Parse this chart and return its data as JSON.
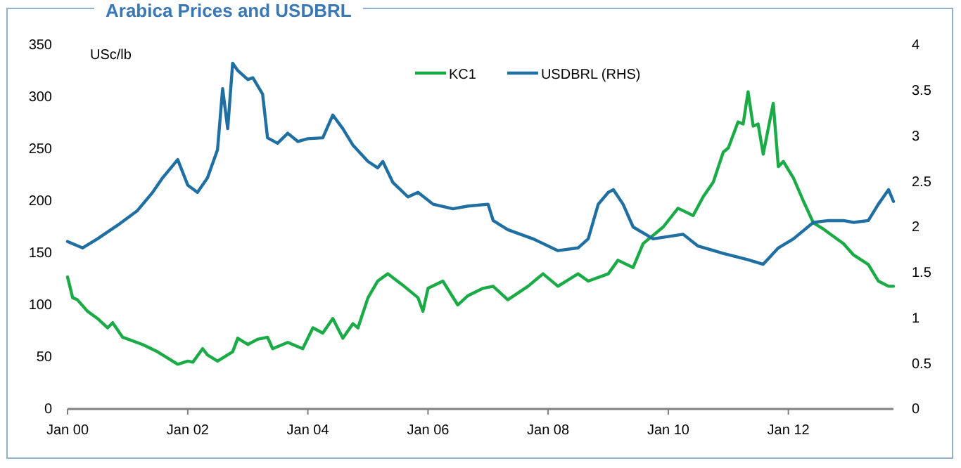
{
  "chart_data": {
    "type": "line",
    "title": "Arabica Prices and USDBRL",
    "ylabel": "USc/lb",
    "xlim": [
      "2000-01",
      "2013-10"
    ],
    "xticks": [
      {
        "value": "2000-01",
        "label": "Jan 00"
      },
      {
        "value": "2002-01",
        "label": "Jan 02"
      },
      {
        "value": "2004-01",
        "label": "Jan 04"
      },
      {
        "value": "2006-01",
        "label": "Jan 06"
      },
      {
        "value": "2008-01",
        "label": "Jan 08"
      },
      {
        "value": "2010-01",
        "label": "Jan 10"
      },
      {
        "value": "2012-01",
        "label": "Jan 12"
      }
    ],
    "ylim": [
      0,
      350
    ],
    "yticks": [
      0,
      50,
      100,
      150,
      200,
      250,
      300,
      350
    ],
    "y2lim": [
      0,
      4
    ],
    "y2ticks": [
      0,
      0.5,
      1,
      1.5,
      2,
      2.5,
      3,
      3.5,
      4
    ],
    "grid": false,
    "legend": "top",
    "marker": "none",
    "line_style": "solid",
    "series": [
      {
        "name": "KC1",
        "color": "#1aab47",
        "x": [
          "2000-01",
          "2000-02",
          "2000-03",
          "2000-05",
          "2000-07",
          "2000-09",
          "2000-10",
          "2000-12",
          "2001-04",
          "2001-07",
          "2001-11",
          "2002-01",
          "2002-02",
          "2002-04",
          "2002-05",
          "2002-07",
          "2002-10",
          "2002-11",
          "2003-01",
          "2003-03",
          "2003-05",
          "2003-06",
          "2003-09",
          "2003-12",
          "2004-02",
          "2004-04",
          "2004-06",
          "2004-08",
          "2004-10",
          "2004-11",
          "2005-01",
          "2005-03",
          "2005-05",
          "2005-08",
          "2005-11",
          "2005-12",
          "2006-01",
          "2006-04",
          "2006-07",
          "2006-09",
          "2006-12",
          "2007-02",
          "2007-05",
          "2007-09",
          "2007-12",
          "2008-03",
          "2008-07",
          "2008-09",
          "2009-01",
          "2009-03",
          "2009-06",
          "2009-08",
          "2009-12",
          "2010-03",
          "2010-06",
          "2010-08",
          "2010-10",
          "2010-12",
          "2011-01",
          "2011-03",
          "2011-04",
          "2011-05",
          "2011-06",
          "2011-07",
          "2011-08",
          "2011-10",
          "2011-11",
          "2011-12",
          "2012-02",
          "2012-04",
          "2012-06",
          "2012-08",
          "2012-12",
          "2013-02",
          "2013-05",
          "2013-07",
          "2013-09",
          "2013-10"
        ],
        "values": [
          127,
          107,
          105,
          94,
          87,
          78,
          83,
          69,
          62,
          55,
          43,
          46,
          45,
          58,
          52,
          46,
          55,
          68,
          62,
          67,
          69,
          58,
          64,
          58,
          78,
          73,
          87,
          68,
          82,
          78,
          107,
          123,
          130,
          119,
          107,
          94,
          116,
          123,
          100,
          109,
          116,
          118,
          105,
          118,
          130,
          118,
          130,
          123,
          130,
          143,
          136,
          159,
          175,
          193,
          186,
          204,
          218,
          247,
          251,
          276,
          274,
          305,
          272,
          274,
          245,
          294,
          233,
          238,
          222,
          200,
          179,
          173,
          159,
          148,
          139,
          123,
          118,
          118
        ]
      },
      {
        "name": "USDBRL (RHS)",
        "color": "#1f6fa3",
        "axis": "y2",
        "x": [
          "2000-01",
          "2000-04",
          "2000-07",
          "2000-11",
          "2001-03",
          "2001-06",
          "2001-08",
          "2001-11",
          "2002-01",
          "2002-03",
          "2002-05",
          "2002-07",
          "2002-08",
          "2002-09",
          "2002-10",
          "2002-11",
          "2003-01",
          "2003-02",
          "2003-04",
          "2003-05",
          "2003-07",
          "2003-09",
          "2003-11",
          "2004-01",
          "2004-04",
          "2004-06",
          "2004-08",
          "2004-10",
          "2005-01",
          "2005-03",
          "2005-04",
          "2005-06",
          "2005-09",
          "2005-11",
          "2006-02",
          "2006-06",
          "2006-09",
          "2007-01",
          "2007-02",
          "2007-05",
          "2007-10",
          "2008-03",
          "2008-07",
          "2008-09",
          "2008-11",
          "2009-01",
          "2009-02",
          "2009-04",
          "2009-06",
          "2009-10",
          "2010-04",
          "2010-07",
          "2010-12",
          "2011-05",
          "2011-08",
          "2011-11",
          "2012-02",
          "2012-06",
          "2012-09",
          "2012-12",
          "2013-02",
          "2013-05",
          "2013-07",
          "2013-09",
          "2013-10"
        ],
        "values": [
          1.84,
          1.77,
          1.87,
          2.02,
          2.18,
          2.38,
          2.54,
          2.74,
          2.46,
          2.38,
          2.54,
          2.85,
          3.52,
          3.08,
          3.8,
          3.72,
          3.62,
          3.64,
          3.46,
          2.98,
          2.92,
          3.03,
          2.94,
          2.97,
          2.98,
          3.23,
          3.08,
          2.9,
          2.72,
          2.65,
          2.72,
          2.49,
          2.33,
          2.38,
          2.25,
          2.2,
          2.23,
          2.25,
          2.07,
          1.97,
          1.87,
          1.74,
          1.77,
          1.87,
          2.25,
          2.38,
          2.41,
          2.25,
          2.0,
          1.87,
          1.92,
          1.79,
          1.71,
          1.64,
          1.59,
          1.77,
          1.87,
          2.05,
          2.07,
          2.07,
          2.05,
          2.07,
          2.25,
          2.41,
          2.28
        ]
      }
    ]
  }
}
